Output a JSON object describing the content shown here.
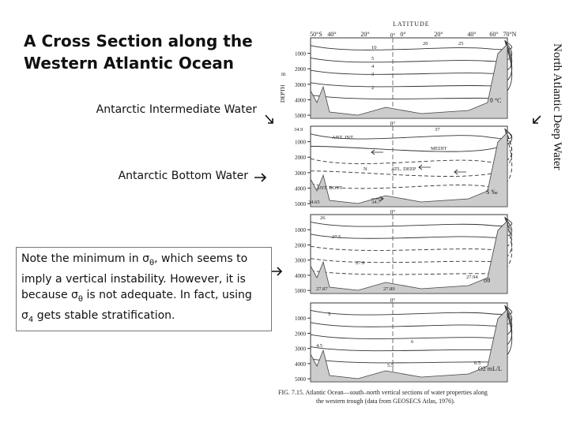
{
  "title": [
    "A Cross Section along the",
    "Western Atlantic Ocean"
  ],
  "callouts": [
    "Antarctic Intermediate Water",
    "Antarctic Bottom Water"
  ],
  "side_label": "North Atlantic Deep Water",
  "note": [
    {
      "text": "Note the minimum in "
    },
    {
      "text": "σ"
    },
    {
      "text": "θ",
      "style": "sub"
    },
    {
      "text": ", which seems to imply a vertical instability. However, it is because "
    },
    {
      "text": "σ"
    },
    {
      "text": "θ",
      "style": "sub"
    },
    {
      "text": " is not adequate. In fact, using "
    },
    {
      "text": "σ"
    },
    {
      "text": "4",
      "style": "sub"
    },
    {
      "text": " gets stable stratification."
    }
  ],
  "figure": {
    "axis_title": "LATITUDE",
    "latitudes": [
      "50°S",
      "40°",
      "20°",
      "0°",
      "20°",
      "40°",
      "60°",
      "70°N"
    ],
    "depth_title": "DEPTH",
    "depth_unit": "m",
    "depths": [
      "1000",
      "2000",
      "3000",
      "4000",
      "5000"
    ],
    "panels": [
      {
        "label": "θ °C",
        "annotations": [
          "20",
          "10",
          "5",
          "4",
          "3",
          "2",
          "25"
        ]
      },
      {
        "label": "S ‰",
        "annotations": [
          "34.9",
          "ANT. INT.",
          "MEDIT",
          "N",
          "ATL. DEEP",
          "ANT. BOTT",
          "34.65",
          "34.7",
          "37"
        ]
      },
      {
        "label": "σθ",
        "annotations": [
          "26",
          "27.5",
          "27.9",
          "27.94",
          "27.87",
          "27.89"
        ]
      },
      {
        "label": "O2 mL/L",
        "annotations": [
          "5",
          "6",
          "5.5",
          "6.5",
          "4.5"
        ]
      }
    ],
    "caption": [
      "FIG. 7.15.  Atlantic Ocean—south–north vertical sections of water properties along",
      "the western trough (data from GEOSECS Atlas, 1976)."
    ]
  }
}
